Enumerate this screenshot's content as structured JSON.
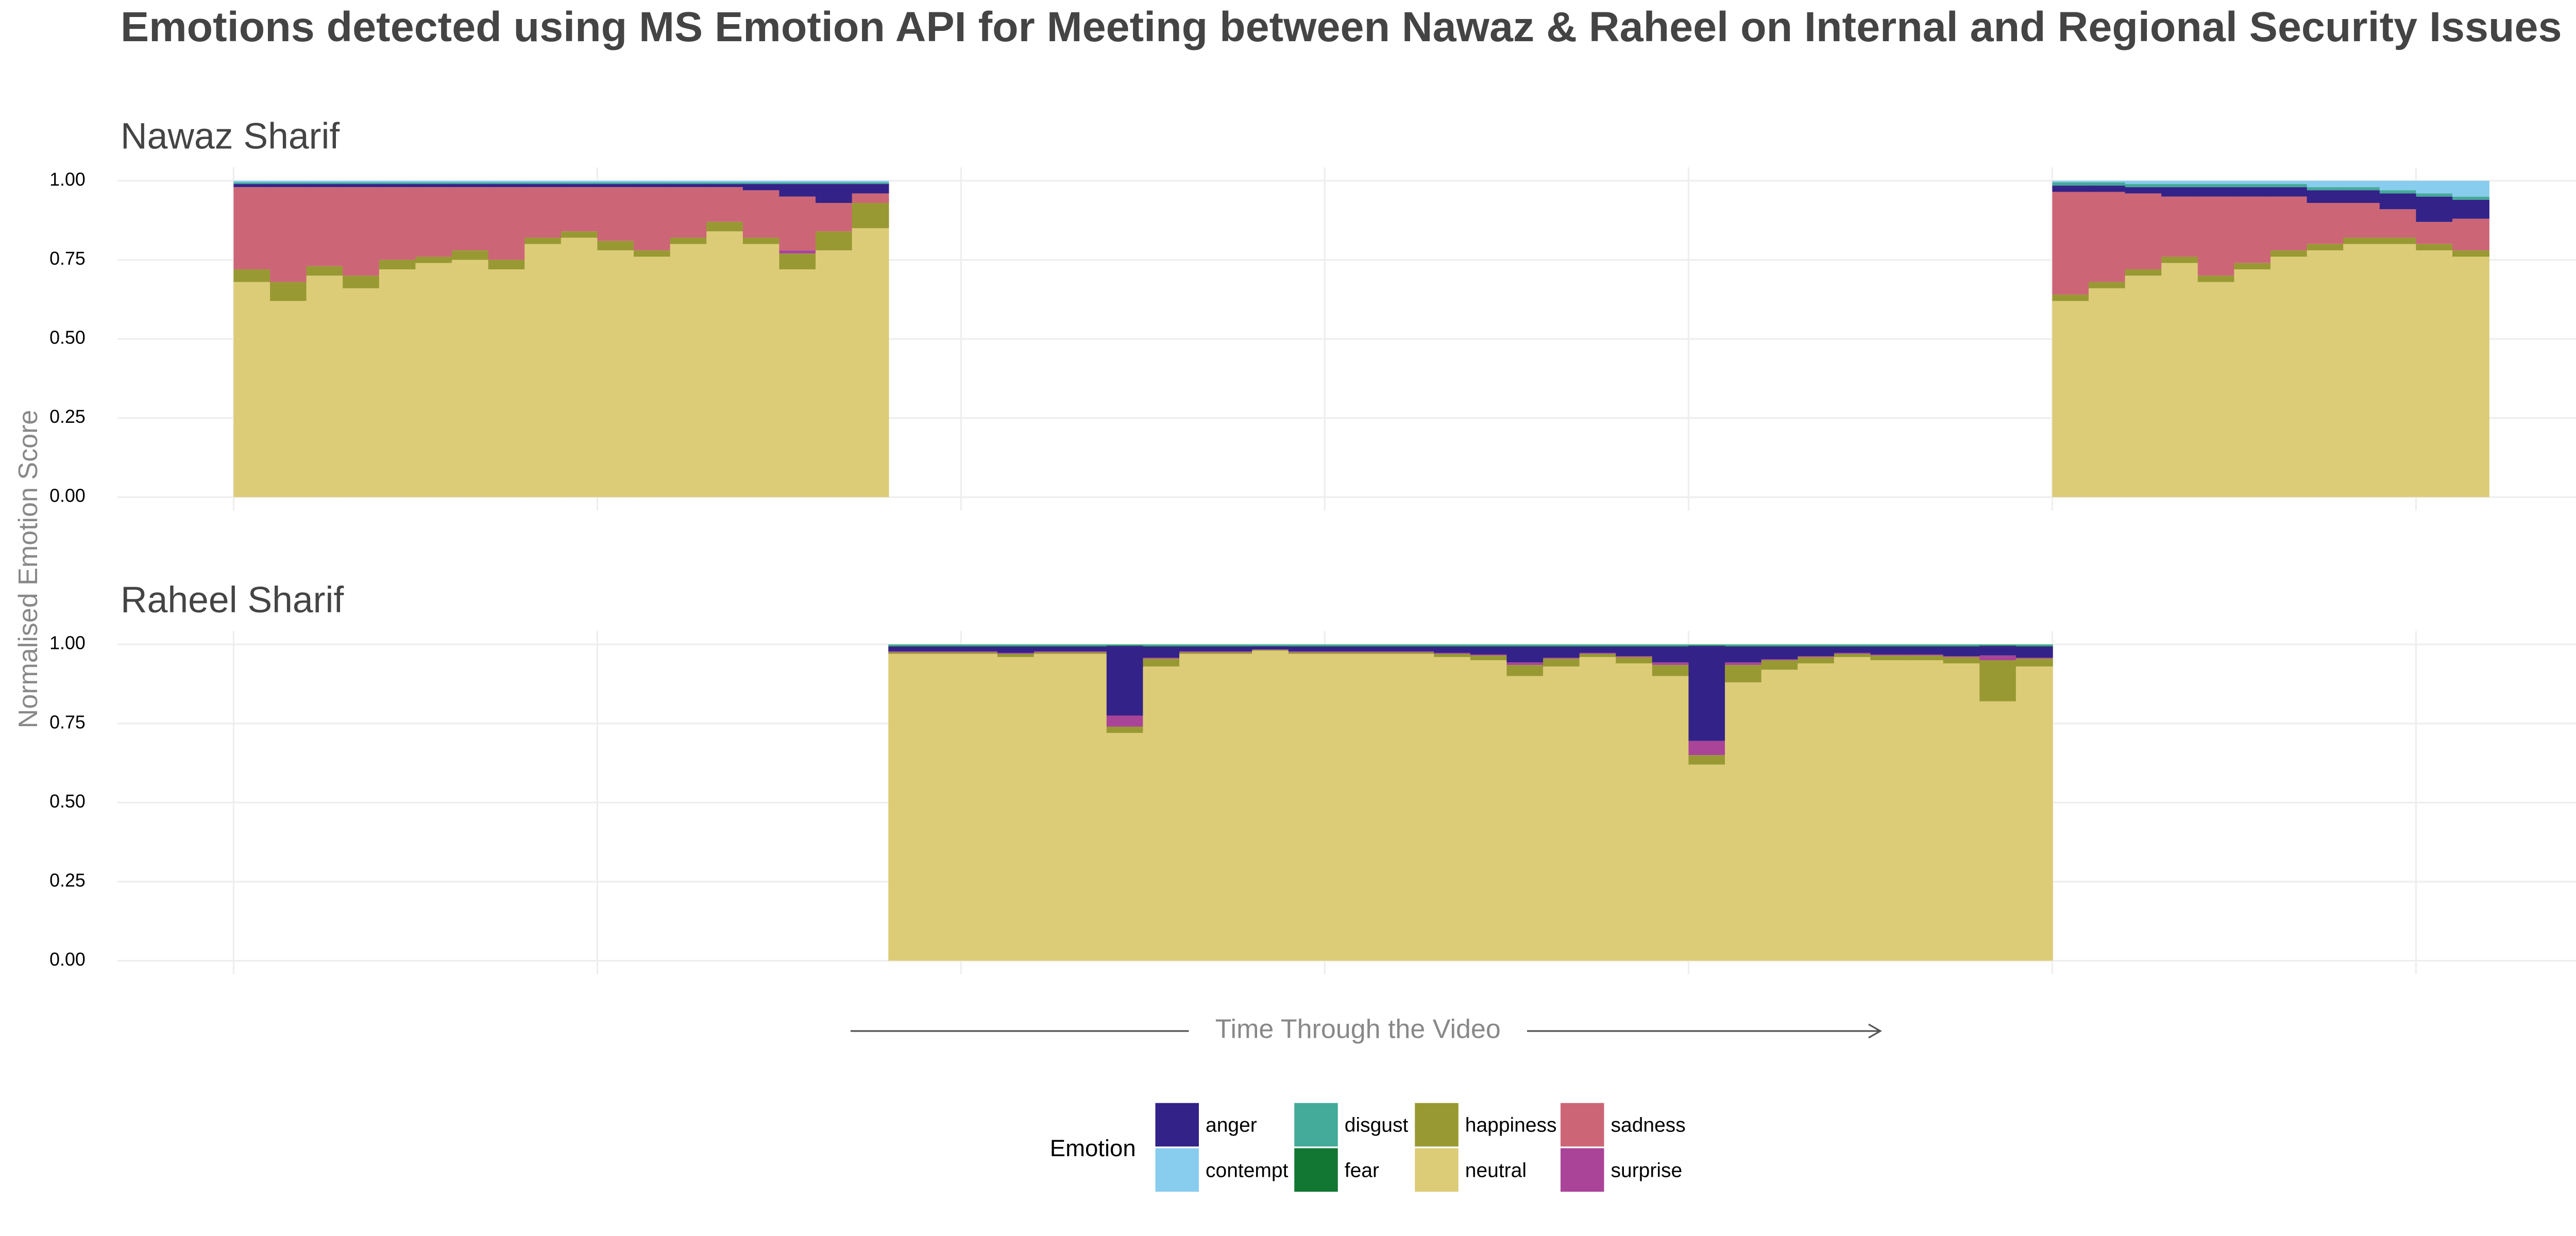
{
  "title": "Emotions detected using MS Emotion API for Meeting between Nawaz & Raheel on Internal and Regional Security Issues",
  "y_label": "Normalised Emotion Score",
  "x_label": "Time Through the Video",
  "legend_title": "Emotion",
  "chart_data": [
    {
      "type": "bar",
      "stacked": true,
      "title": "Nawaz Sharif",
      "x": [
        0.05,
        0.15,
        0.25,
        0.35,
        0.45,
        0.55,
        0.65,
        0.75,
        0.85,
        0.95,
        1.05,
        1.15,
        1.25,
        1.35,
        1.45,
        1.55,
        1.65,
        1.75,
        5.05,
        5.15,
        5.25,
        5.35,
        5.45,
        5.55,
        5.65,
        5.75,
        5.85,
        5.95,
        6.05,
        6.15
      ],
      "xlim": [
        -0.32,
        6.47
      ],
      "xticks": [
        0,
        1,
        2,
        3,
        4,
        5,
        6
      ],
      "ylim": [
        0,
        1
      ],
      "yticks": [
        {
          "value": 0,
          "label": "0.00"
        },
        {
          "value": 0.25,
          "label": "0.25"
        },
        {
          "value": 0.5,
          "label": "0.50"
        },
        {
          "value": 0.75,
          "label": "0.75"
        },
        {
          "value": 1,
          "label": "1.00"
        }
      ],
      "grid": true,
      "series": [
        {
          "name": "anger",
          "color": "#332288",
          "values": [
            0.01,
            0.01,
            0.01,
            0.01,
            0.01,
            0.01,
            0.01,
            0.01,
            0.01,
            0.01,
            0.01,
            0.01,
            0.01,
            0.01,
            0.02,
            0.04,
            0.06,
            0.03,
            0.02,
            0.02,
            0.02,
            0.03,
            0.03,
            0.03,
            0.03,
            0.04,
            0.04,
            0.05,
            0.08,
            0.06
          ]
        },
        {
          "name": "contempt",
          "color": "#88CCEE",
          "values": [
            0.005,
            0.005,
            0.005,
            0.005,
            0.005,
            0.005,
            0.005,
            0.005,
            0.005,
            0.005,
            0.005,
            0.005,
            0.005,
            0.005,
            0.005,
            0.005,
            0.005,
            0.005,
            0.005,
            0.005,
            0.01,
            0.01,
            0.01,
            0.01,
            0.01,
            0.02,
            0.02,
            0.03,
            0.04,
            0.05
          ]
        },
        {
          "name": "disgust",
          "color": "#44AA99",
          "values": [
            0.005,
            0.005,
            0.005,
            0.005,
            0.005,
            0.005,
            0.005,
            0.005,
            0.005,
            0.005,
            0.005,
            0.005,
            0.005,
            0.005,
            0.005,
            0.005,
            0.005,
            0.005,
            0.01,
            0.01,
            0.01,
            0.01,
            0.01,
            0.01,
            0.01,
            0.01,
            0.01,
            0.01,
            0.01,
            0.01
          ]
        },
        {
          "name": "fear",
          "color": "#117733",
          "values": [
            0,
            0,
            0,
            0,
            0,
            0,
            0,
            0,
            0,
            0,
            0,
            0,
            0,
            0,
            0,
            0,
            0,
            0,
            0,
            0,
            0,
            0,
            0,
            0,
            0,
            0,
            0,
            0,
            0,
            0
          ]
        },
        {
          "name": "happiness",
          "color": "#999933",
          "values": [
            0.04,
            0.06,
            0.03,
            0.04,
            0.03,
            0.02,
            0.03,
            0.03,
            0.02,
            0.02,
            0.03,
            0.02,
            0.02,
            0.03,
            0.02,
            0.05,
            0.06,
            0.08,
            0.02,
            0.02,
            0.02,
            0.02,
            0.02,
            0.02,
            0.02,
            0.02,
            0.02,
            0.02,
            0.02,
            0.02
          ]
        },
        {
          "name": "neutral",
          "color": "#DDCC77",
          "values": [
            0.68,
            0.62,
            0.7,
            0.66,
            0.72,
            0.74,
            0.75,
            0.72,
            0.8,
            0.82,
            0.78,
            0.76,
            0.8,
            0.84,
            0.8,
            0.72,
            0.78,
            0.85,
            0.62,
            0.66,
            0.7,
            0.74,
            0.68,
            0.72,
            0.76,
            0.78,
            0.8,
            0.8,
            0.78,
            0.76
          ]
        },
        {
          "name": "sadness",
          "color": "#CC6677",
          "values": [
            0.26,
            0.3,
            0.25,
            0.28,
            0.23,
            0.22,
            0.2,
            0.23,
            0.16,
            0.14,
            0.17,
            0.2,
            0.16,
            0.11,
            0.15,
            0.17,
            0.09,
            0.03,
            0.325,
            0.285,
            0.24,
            0.19,
            0.25,
            0.21,
            0.17,
            0.13,
            0.11,
            0.09,
            0.07,
            0.1
          ]
        },
        {
          "name": "surprise",
          "color": "#AA4499",
          "values": [
            0,
            0,
            0,
            0,
            0,
            0,
            0,
            0,
            0,
            0,
            0,
            0,
            0,
            0,
            0,
            0.01,
            0,
            0,
            0,
            0,
            0,
            0,
            0,
            0,
            0,
            0,
            0,
            0,
            0,
            0
          ]
        }
      ]
    },
    {
      "type": "bar",
      "stacked": true,
      "title": "Raheel Sharif",
      "x": [
        1.85,
        1.95,
        2.05,
        2.15,
        2.25,
        2.35,
        2.45,
        2.55,
        2.65,
        2.75,
        2.85,
        2.95,
        3.05,
        3.15,
        3.25,
        3.35,
        3.45,
        3.55,
        3.65,
        3.75,
        3.85,
        3.95,
        4.05,
        4.15,
        4.25,
        4.35,
        4.45,
        4.55,
        4.65,
        4.75,
        4.85,
        4.95
      ],
      "xlim": [
        -0.32,
        6.47
      ],
      "xticks": [
        0,
        1,
        2,
        3,
        4,
        5,
        6
      ],
      "ylim": [
        0,
        1
      ],
      "yticks": [
        {
          "value": 0,
          "label": "0.00"
        },
        {
          "value": 0.25,
          "label": "0.25"
        },
        {
          "value": 0.5,
          "label": "0.50"
        },
        {
          "value": 0.75,
          "label": "0.75"
        },
        {
          "value": 1,
          "label": "1.00"
        }
      ],
      "grid": true,
      "series": [
        {
          "name": "anger",
          "color": "#332288",
          "values": [
            0.015,
            0.015,
            0.015,
            0.02,
            0.015,
            0.015,
            0.22,
            0.035,
            0.015,
            0.015,
            0.01,
            0.015,
            0.015,
            0.015,
            0.015,
            0.02,
            0.025,
            0.05,
            0.035,
            0.02,
            0.03,
            0.05,
            0.3,
            0.05,
            0.04,
            0.03,
            0.02,
            0.025,
            0.025,
            0.03,
            0.03,
            0.035
          ]
        },
        {
          "name": "contempt",
          "color": "#88CCEE",
          "values": [
            0,
            0,
            0,
            0,
            0,
            0,
            0,
            0,
            0,
            0,
            0,
            0,
            0,
            0,
            0,
            0,
            0,
            0,
            0,
            0,
            0,
            0,
            0,
            0,
            0,
            0,
            0,
            0,
            0,
            0,
            0,
            0
          ]
        },
        {
          "name": "disgust",
          "color": "#44AA99",
          "values": [
            0.005,
            0.005,
            0.005,
            0.005,
            0.005,
            0.005,
            0.003,
            0.005,
            0.005,
            0.005,
            0.005,
            0.005,
            0.005,
            0.005,
            0.005,
            0.005,
            0.005,
            0.005,
            0.005,
            0.005,
            0.005,
            0.005,
            0.003,
            0.005,
            0.005,
            0.005,
            0.005,
            0.005,
            0.005,
            0.005,
            0.003,
            0.005
          ]
        },
        {
          "name": "fear",
          "color": "#117733",
          "values": [
            0.002,
            0.002,
            0.002,
            0.002,
            0.002,
            0.002,
            0.002,
            0.002,
            0.002,
            0.002,
            0.001,
            0.002,
            0.002,
            0.002,
            0.002,
            0.002,
            0.002,
            0.002,
            0.002,
            0.002,
            0.002,
            0.002,
            0.002,
            0.002,
            0.002,
            0.002,
            0.002,
            0.002,
            0.002,
            0.002,
            0.002,
            0.002
          ]
        },
        {
          "name": "happiness",
          "color": "#999933",
          "values": [
            0.005,
            0.005,
            0.005,
            0.01,
            0.005,
            0.005,
            0.02,
            0.025,
            0.005,
            0.005,
            0.003,
            0.005,
            0.005,
            0.005,
            0.005,
            0.01,
            0.015,
            0.035,
            0.025,
            0.01,
            0.02,
            0.035,
            0.03,
            0.055,
            0.03,
            0.02,
            0.01,
            0.015,
            0.015,
            0.02,
            0.13,
            0.025
          ]
        },
        {
          "name": "neutral",
          "color": "#DDCC77",
          "values": [
            0.97,
            0.97,
            0.97,
            0.96,
            0.97,
            0.97,
            0.72,
            0.93,
            0.97,
            0.97,
            0.98,
            0.97,
            0.97,
            0.97,
            0.97,
            0.96,
            0.95,
            0.9,
            0.93,
            0.96,
            0.94,
            0.9,
            0.62,
            0.88,
            0.92,
            0.94,
            0.96,
            0.95,
            0.95,
            0.94,
            0.82,
            0.93
          ]
        },
        {
          "name": "sadness",
          "color": "#CC6677",
          "values": [
            0,
            0,
            0,
            0,
            0,
            0,
            0,
            0,
            0,
            0,
            0,
            0,
            0,
            0,
            0,
            0,
            0,
            0,
            0,
            0,
            0,
            0,
            0,
            0,
            0,
            0,
            0,
            0,
            0,
            0,
            0,
            0
          ]
        },
        {
          "name": "surprise",
          "color": "#AA4499",
          "values": [
            0.003,
            0.003,
            0.003,
            0.003,
            0.003,
            0.003,
            0.035,
            0.003,
            0.003,
            0.003,
            0.001,
            0.003,
            0.003,
            0.003,
            0.003,
            0.003,
            0.003,
            0.008,
            0.003,
            0.003,
            0.003,
            0.008,
            0.045,
            0.008,
            0.003,
            0.003,
            0.003,
            0.003,
            0.003,
            0.003,
            0.015,
            0.003
          ]
        }
      ]
    }
  ]
}
